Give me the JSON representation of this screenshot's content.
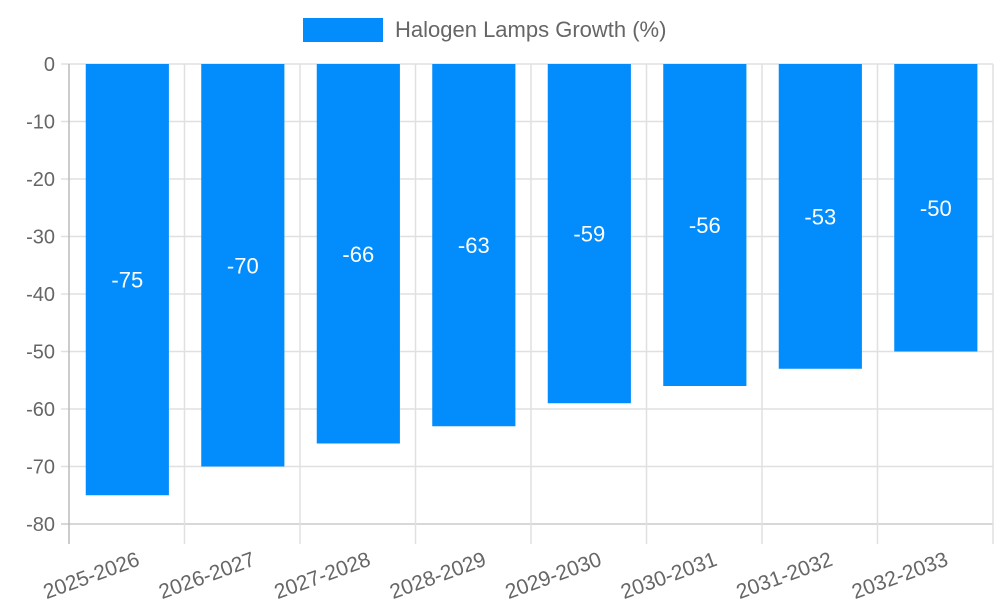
{
  "legend": {
    "label": "Halogen Lamps Growth (%)",
    "color": "#038cfc"
  },
  "chart_data": {
    "type": "bar",
    "title": "",
    "categories": [
      "2025-2026",
      "2026-2027",
      "2027-2028",
      "2028-2029",
      "2029-2030",
      "2030-2031",
      "2031-2032",
      "2032-2033"
    ],
    "series": [
      {
        "name": "Halogen Lamps Growth (%)",
        "values": [
          -75,
          -70,
          -66,
          -63,
          -59,
          -56,
          -53,
          -50
        ],
        "color": "#038cfc"
      }
    ],
    "xlabel": "",
    "ylabel": "",
    "ylim": [
      -80,
      0
    ],
    "yticks": [
      0,
      -10,
      -20,
      -30,
      -40,
      -50,
      -60,
      -70,
      -80
    ],
    "grid": true,
    "legend_position": "top",
    "data_labels": true
  }
}
